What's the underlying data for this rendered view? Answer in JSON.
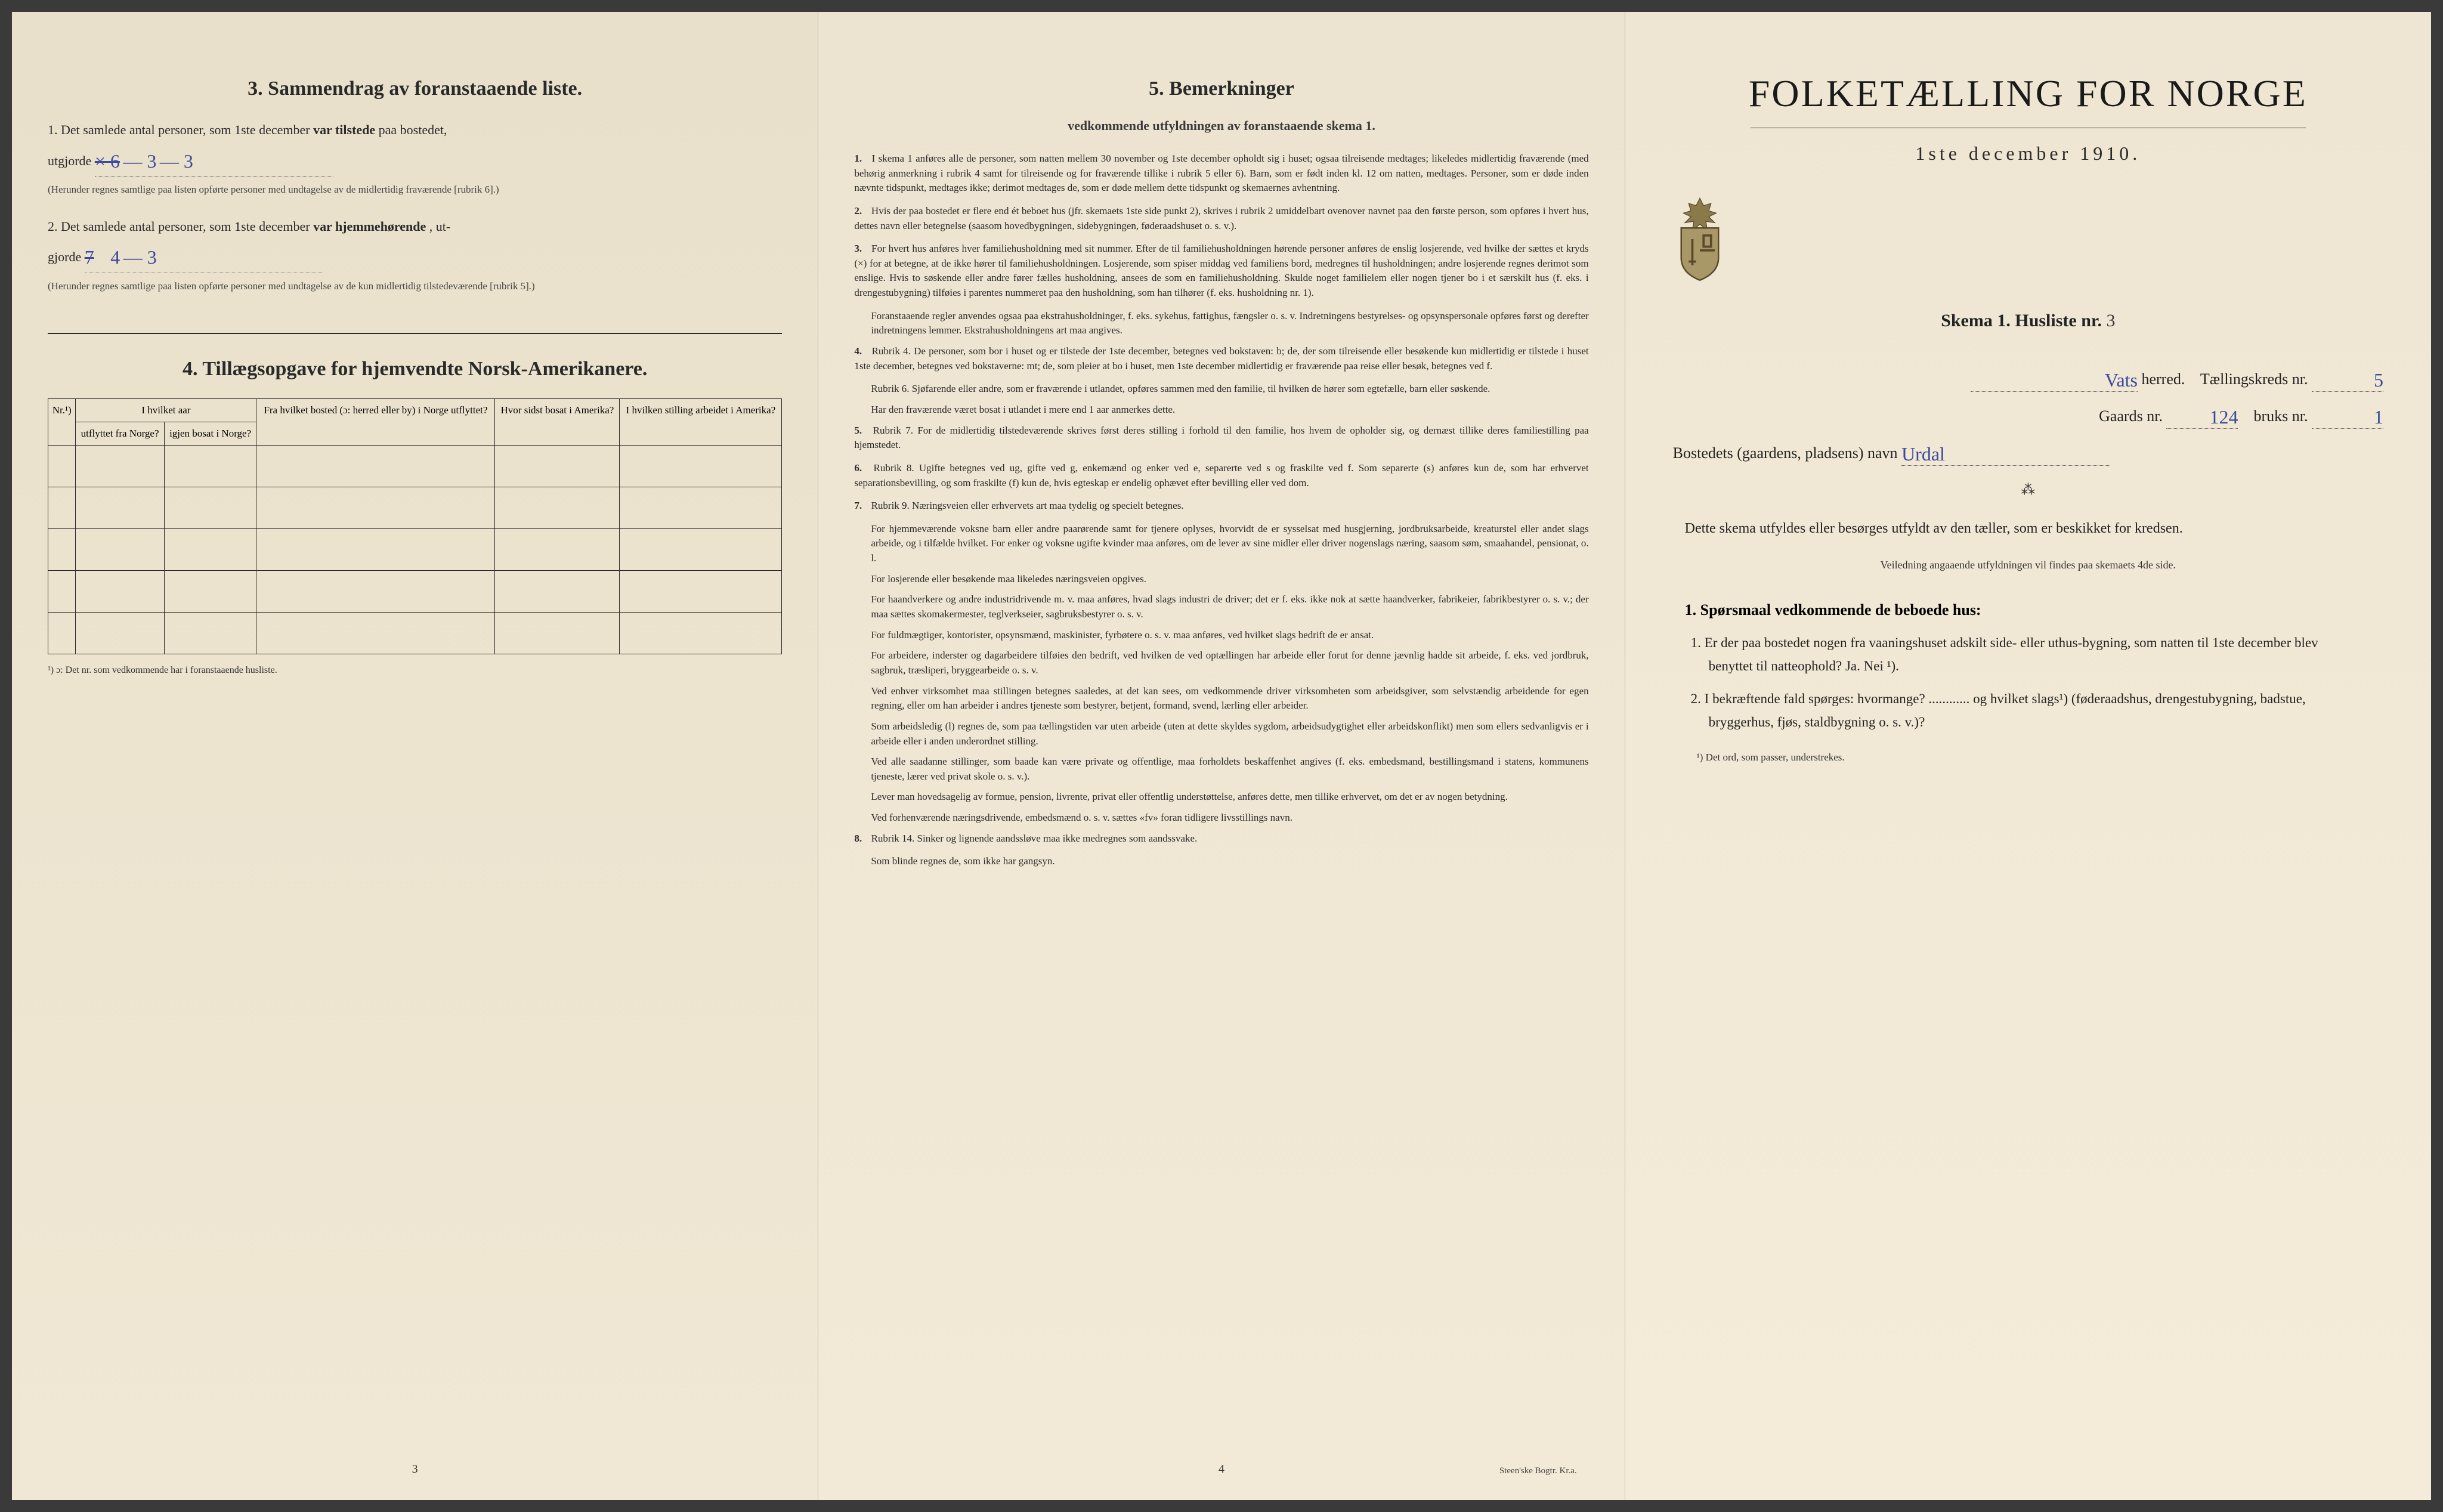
{
  "colors": {
    "paper": "#f0e8d6",
    "ink": "#2a2a2a",
    "handwriting": "#3b4a9c",
    "border": "#2a2a2a"
  },
  "leftPage": {
    "section3": {
      "title": "3.   Sammendrag av foranstaaende liste.",
      "item1_pre": "1.  Det samlede antal personer, som 1ste december",
      "item1_bold": "var tilstede",
      "item1_post": "paa bostedet,",
      "utgjorde": "utgjorde",
      "hw1_crossed": "× 6",
      "hw1_a": "3",
      "hw1_b": "3",
      "note1": "(Herunder regnes samtlige paa listen opførte personer med undtagelse av de midlertidig fraværende [rubrik 6].)",
      "item2_pre": "2.  Det samlede antal personer, som 1ste december",
      "item2_bold": "var hjemmehørende",
      "item2_post": ", ut-",
      "gjorde": "gjorde",
      "hw2_crossed": "7",
      "hw2_a": "4",
      "hw2_b": "3",
      "note2": "(Herunder regnes samtlige paa listen opførte personer med undtagelse av de kun midlertidig tilstedeværende [rubrik 5].)"
    },
    "section4": {
      "title": "4.   Tillægsopgave for hjemvendte Norsk-Amerikanere.",
      "headers": {
        "nr": "Nr.¹)",
        "aar_group": "I hvilket aar",
        "utflyttet": "utflyttet fra Norge?",
        "igjen_bosat": "igjen bosat i Norge?",
        "fra_bosted": "Fra hvilket bosted (ɔ: herred eller by) i Norge utflyttet?",
        "hvor_sidst": "Hvor sidst bosat i Amerika?",
        "stilling": "I hvilken stilling arbeidet i Amerika?"
      },
      "footnote": "¹) ɔ: Det nr. som vedkommende har i foranstaaende husliste."
    },
    "pageNum": "3"
  },
  "centerPage": {
    "title": "5.   Bemerkninger",
    "subtitle": "vedkommende utfyldningen av foranstaaende skema 1.",
    "items": [
      {
        "n": "1.",
        "text": "I skema 1 anføres alle de personer, som natten mellem 30 november og 1ste december opholdt sig i huset; ogsaa tilreisende medtages; likeledes midlertidig fraværende (med behørig anmerkning i rubrik 4 samt for tilreisende og for fraværende tillike i rubrik 5 eller 6). Barn, som er født inden kl. 12 om natten, medtages. Personer, som er døde inden nævnte tidspunkt, medtages ikke; derimot medtages de, som er døde mellem dette tidspunkt og skemaernes avhentning."
      },
      {
        "n": "2.",
        "text": "Hvis der paa bostedet er flere end ét beboet hus (jfr. skemaets 1ste side punkt 2), skrives i rubrik 2 umiddelbart ovenover navnet paa den første person, som opføres i hvert hus, dettes navn eller betegnelse (saasom hovedbygningen, sidebygningen, føderaadshuset o. s. v.)."
      },
      {
        "n": "3.",
        "text": "For hvert hus anføres hver familiehusholdning med sit nummer. Efter de til familiehusholdningen hørende personer anføres de enslig losjerende, ved hvilke der sættes et kryds (×) for at betegne, at de ikke hører til familiehusholdningen. Losjerende, som spiser middag ved familiens bord, medregnes til husholdningen; andre losjerende regnes derimot som enslige. Hvis to søskende eller andre fører fælles husholdning, ansees de som en familiehusholdning. Skulde noget familielem eller nogen tjener bo i et særskilt hus (f. eks. i drengestubygning) tilføies i parentes nummeret paa den husholdning, som han tilhører (f. eks. husholdning nr. 1).",
        "extra": "Foranstaaende regler anvendes ogsaa paa ekstrahusholdninger, f. eks. sykehus, fattighus, fængsler o. s. v. Indretningens bestyrelses- og opsynspersonale opføres først og derefter indretningens lemmer. Ekstrahusholdningens art maa angives."
      },
      {
        "n": "4.",
        "text": "Rubrik 4. De personer, som bor i huset og er tilstede der 1ste december, betegnes ved bokstaven: b; de, der som tilreisende eller besøkende kun midlertidig er tilstede i huset 1ste december, betegnes ved bokstaverne: mt; de, som pleier at bo i huset, men 1ste december midlertidig er fraværende paa reise eller besøk, betegnes ved f.",
        "subs": [
          "Rubrik 6. Sjøfarende eller andre, som er fraværende i utlandet, opføres sammen med den familie, til hvilken de hører som egtefælle, barn eller søskende.",
          "Har den fraværende været bosat i utlandet i mere end 1 aar anmerkes dette."
        ]
      },
      {
        "n": "5.",
        "text": "Rubrik 7. For de midlertidig tilstedeværende skrives først deres stilling i forhold til den familie, hos hvem de opholder sig, og dernæst tillike deres familiestilling paa hjemstedet."
      },
      {
        "n": "6.",
        "text": "Rubrik 8. Ugifte betegnes ved ug, gifte ved g, enkemænd og enker ved e, separerte ved s og fraskilte ved f. Som separerte (s) anføres kun de, som har erhvervet separationsbevilling, og som fraskilte (f) kun de, hvis egteskap er endelig ophævet efter bevilling eller ved dom."
      },
      {
        "n": "7.",
        "text": "Rubrik 9. Næringsveien eller erhvervets art maa tydelig og specielt betegnes.",
        "subs": [
          "For hjemmeværende voksne barn eller andre paarørende samt for tjenere oplyses, hvorvidt de er sysselsat med husgjerning, jordbruksarbeide, kreaturstel eller andet slags arbeide, og i tilfælde hvilket. For enker og voksne ugifte kvinder maa anføres, om de lever av sine midler eller driver nogenslags næring, saasom søm, smaahandel, pensionat, o. l.",
          "For losjerende eller besøkende maa likeledes næringsveien opgives.",
          "For haandverkere og andre industridrivende m. v. maa anføres, hvad slags industri de driver; det er f. eks. ikke nok at sætte haandverker, fabrikeier, fabrikbestyrer o. s. v.; der maa sættes skomakermester, teglverkseier, sagbruksbestyrer o. s. v.",
          "For fuldmægtiger, kontorister, opsynsmænd, maskinister, fyrbøtere o. s. v. maa anføres, ved hvilket slags bedrift de er ansat.",
          "For arbeidere, inderster og dagarbeidere tilføies den bedrift, ved hvilken de ved optællingen har arbeide eller forut for denne jævnlig hadde sit arbeide, f. eks. ved jordbruk, sagbruk, træsliperi, bryggearbeide o. s. v.",
          "Ved enhver virksomhet maa stillingen betegnes saaledes, at det kan sees, om vedkommende driver virksomheten som arbeidsgiver, som selvstændig arbeidende for egen regning, eller om han arbeider i andres tjeneste som bestyrer, betjent, formand, svend, lærling eller arbeider.",
          "Som arbeidsledig (l) regnes de, som paa tællingstiden var uten arbeide (uten at dette skyldes sygdom, arbeidsudygtighet eller arbeidskonflikt) men som ellers sedvanligvis er i arbeide eller i anden underordnet stilling.",
          "Ved alle saadanne stillinger, som baade kan være private og offentlige, maa forholdets beskaffenhet angives (f. eks. embedsmand, bestillingsmand i statens, kommunens tjeneste, lærer ved privat skole o. s. v.).",
          "Lever man hovedsagelig av formue, pension, livrente, privat eller offentlig understøttelse, anføres dette, men tillike erhvervet, om det er av nogen betydning.",
          "Ved forhenværende næringsdrivende, embedsmænd o. s. v. sættes «fv» foran tidligere livsstillings navn."
        ]
      },
      {
        "n": "8.",
        "text": "Rubrik 14. Sinker og lignende aandssløve maa ikke medregnes som aandssvake.",
        "extra": "Som blinde regnes de, som ikke har gangsyn."
      }
    ],
    "pageNum": "4",
    "printer": "Steen'ske Bogtr.  Kr.a."
  },
  "rightPage": {
    "title": "FOLKETÆLLING FOR NORGE",
    "date": "1ste december 1910.",
    "skema": "Skema 1.   Husliste nr.",
    "husliste_hw": "3",
    "herred_hw": "Vats",
    "herred_label": "herred.",
    "taellingskreds": "Tællingskreds nr.",
    "taellingskreds_hw": "5",
    "gaards": "Gaards nr.",
    "gaards_hw": "124",
    "bruks": "bruks nr.",
    "bruks_hw": "1",
    "bosted": "Bostedets (gaardens, pladsens) navn",
    "bosted_hw": "Urdal",
    "instruction": "Dette skema utfyldes eller besørges utfyldt av den tæller, som er beskikket for kredsen.",
    "instruction_small": "Veiledning angaaende utfyldningen vil findes paa skemaets 4de side.",
    "q_head": "1. Spørsmaal vedkommende de beboede hus:",
    "q1": "1.  Er der paa bostedet nogen fra vaaningshuset adskilt side- eller uthus-bygning, som natten til 1ste december blev benyttet til natteophold?   Ja.   Nei ¹).",
    "q2": "2.  I bekræftende fald spørges: hvormange? ............ og hvilket slags¹) (føderaadshus, drengestubygning, badstue, bryggerhus, fjøs, staldbygning o. s. v.)?",
    "footnote": "¹) Det ord, som passer, understrekes."
  }
}
